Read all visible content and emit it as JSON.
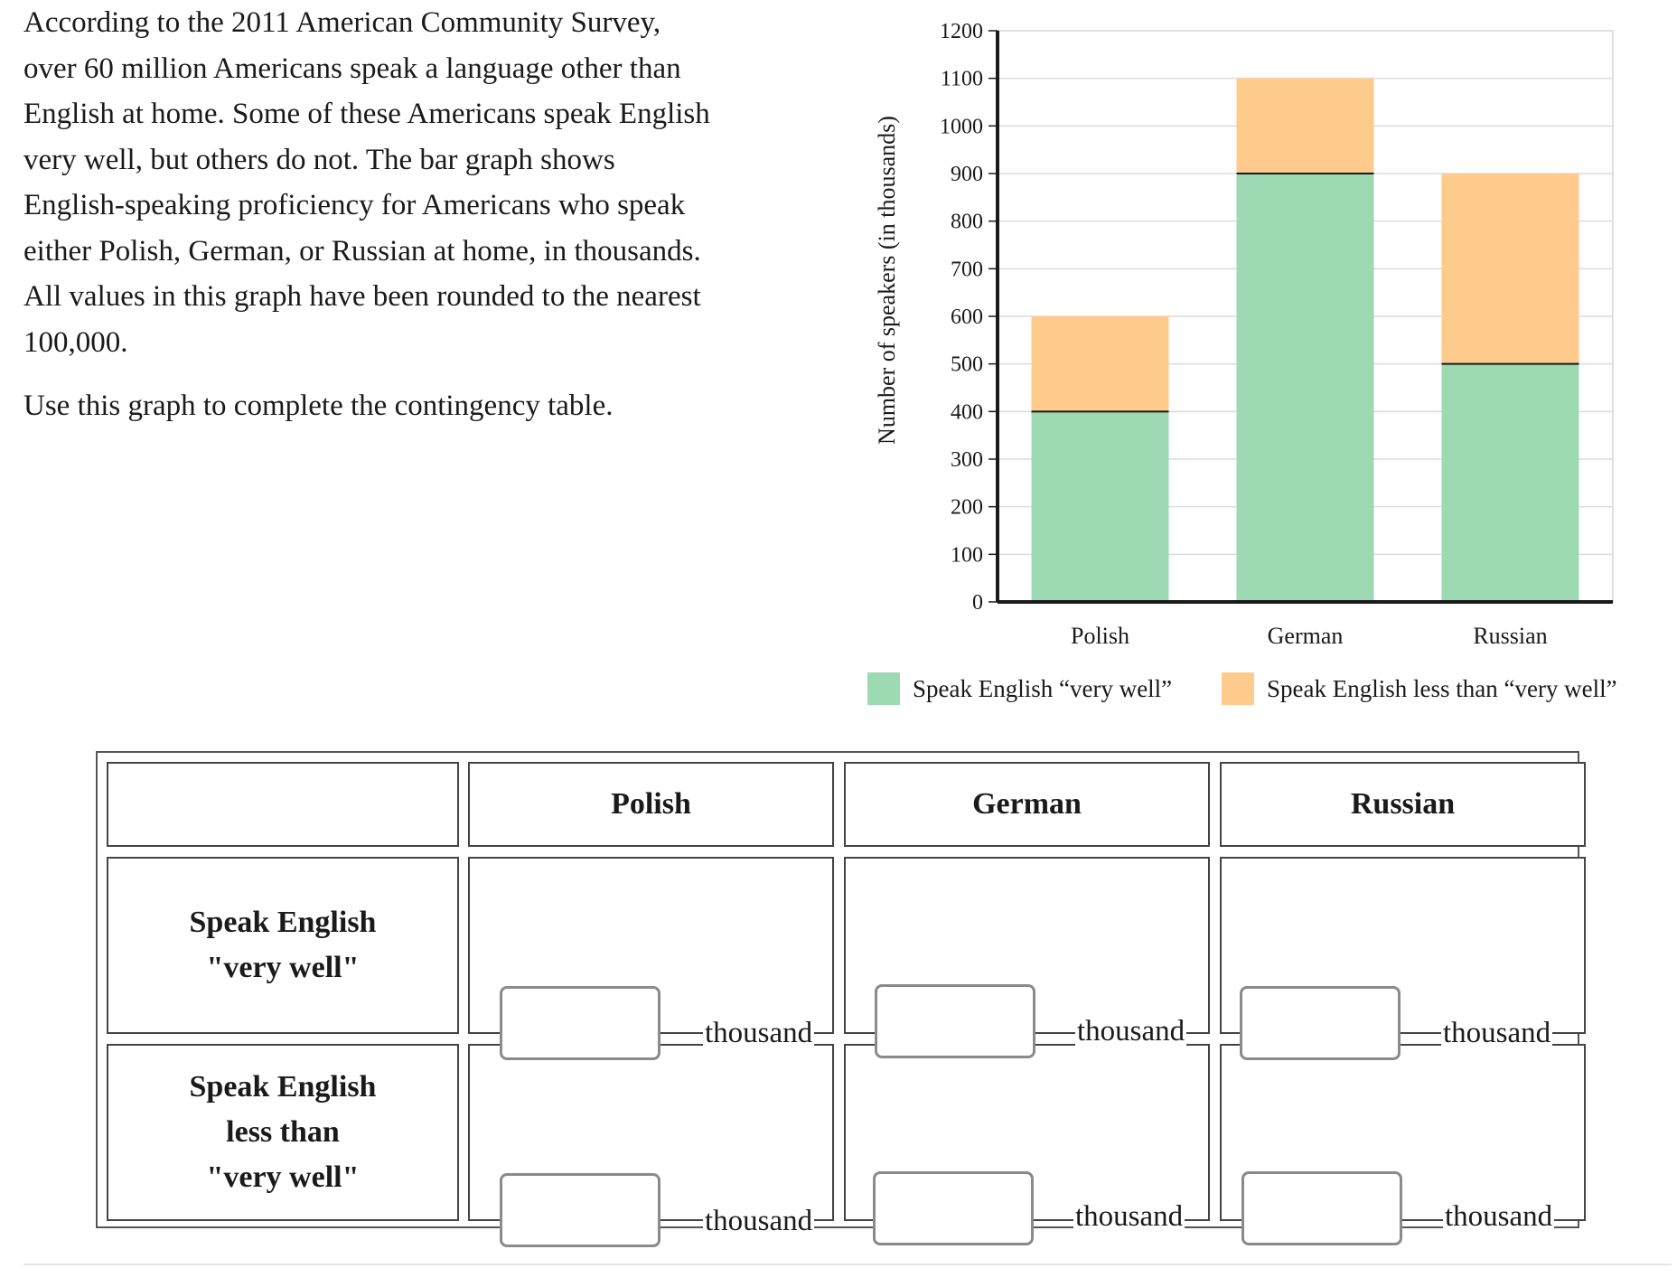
{
  "intro": {
    "paragraph1": "According to the 2011 American Community Survey, over 60 million Americans speak a language other than English at home. Some of these Americans speak English very well, but others do not. The bar graph shows English-speaking proficiency for Americans who speak either Polish, German, or Russian at home, in thousands. All values in this graph have been rounded to the nearest 100,000.",
    "paragraph2": "Use this graph to complete the contingency table."
  },
  "chart_data": {
    "type": "bar",
    "stacked": true,
    "categories": [
      "Polish",
      "German",
      "Russian"
    ],
    "series": [
      {
        "name": "Speak English “very well”",
        "values": [
          400,
          900,
          500
        ],
        "color": "#9dd9b2"
      },
      {
        "name": "Speak English less than “very well”",
        "values": [
          200,
          200,
          400
        ],
        "color": "#fecb8d"
      }
    ],
    "ylabel": "Number of speakers (in thousands)",
    "ylim": [
      0,
      1200
    ],
    "yticks": [
      "0",
      "100",
      "200",
      "300",
      "400",
      "500",
      "600",
      "700",
      "800",
      "900",
      "1000",
      "1100",
      "1200"
    ],
    "grid": true,
    "legend_position": "bottom"
  },
  "table": {
    "corner": "",
    "columns": [
      "Polish",
      "German",
      "Russian"
    ],
    "rows": [
      {
        "label_lines": [
          "Speak English",
          "\"very well\""
        ]
      },
      {
        "label_lines": [
          "Speak English",
          "less than",
          "\"very well\""
        ]
      }
    ],
    "unit_label": "thousand",
    "answers": [
      [
        "",
        "",
        ""
      ],
      [
        "",
        "",
        ""
      ]
    ]
  }
}
